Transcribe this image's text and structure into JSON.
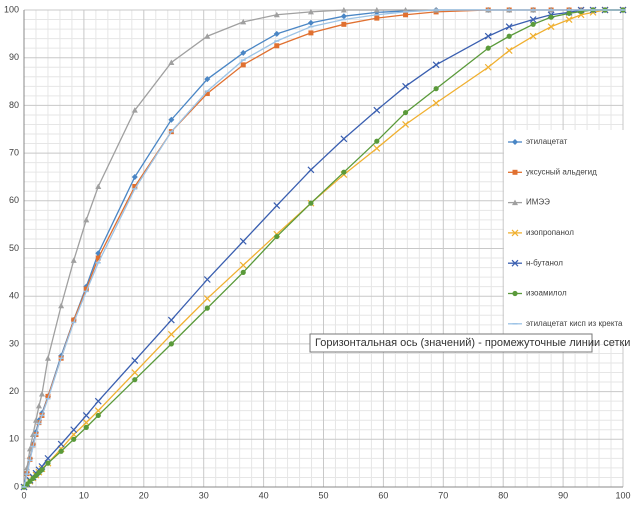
{
  "chart_data": {
    "type": "line",
    "x": [
      0,
      0.5,
      1,
      1.5,
      2,
      2.5,
      3,
      4,
      6.2,
      8.3,
      10.4,
      12.4,
      18.5,
      24.6,
      30.6,
      36.6,
      42.2,
      47.9,
      53.4,
      58.9,
      63.7,
      68.8,
      77.5,
      81,
      85,
      88,
      91,
      93,
      95,
      97,
      100
    ],
    "series": [
      {
        "name": "этилацетат",
        "color": "#4a86c5",
        "marker": "diamond",
        "values": [
          0,
          3,
          6,
          9,
          11.5,
          14,
          15.5,
          19,
          27.5,
          35,
          42,
          49,
          65,
          77,
          85.5,
          91,
          95,
          97.3,
          98.7,
          99.5,
          99.8,
          100,
          100,
          100,
          100,
          100,
          100,
          100,
          100,
          100,
          100
        ]
      },
      {
        "name": "уксусный альдегид",
        "color": "#e07030",
        "marker": "square",
        "values": [
          0,
          2.8,
          5.8,
          8.8,
          11,
          13.5,
          15,
          19,
          27,
          35,
          41.5,
          48,
          63,
          74.5,
          82.5,
          88.5,
          92.5,
          95.2,
          97,
          98.3,
          99,
          99.6,
          100,
          100,
          100,
          100,
          100,
          100,
          100,
          100,
          100
        ]
      },
      {
        "name": "ИМЭЭ",
        "color": "#a0a0a0",
        "marker": "triangle",
        "values": [
          0,
          4,
          8,
          11,
          14,
          17,
          19.5,
          27,
          38,
          47.5,
          56,
          63,
          79,
          89,
          94.5,
          97.5,
          99,
          99.6,
          100,
          100,
          100,
          100,
          100,
          100,
          100,
          100,
          100,
          100,
          100,
          100,
          100
        ]
      },
      {
        "name": "изопропанол",
        "color": "#f0b030",
        "marker": "x",
        "values": [
          0,
          0.6,
          1.2,
          1.9,
          2.5,
          3.1,
          3.8,
          5,
          8,
          11,
          13.5,
          16,
          24,
          32,
          39.5,
          46.5,
          53,
          59.5,
          65.5,
          71,
          76,
          80.5,
          88,
          91.5,
          94.5,
          96.5,
          98,
          99,
          99.5,
          100,
          100
        ]
      },
      {
        "name": "н-бутанол",
        "color": "#3a5fb0",
        "marker": "x",
        "values": [
          0,
          0.7,
          1.4,
          2.1,
          2.9,
          3.6,
          4.3,
          6,
          9,
          12,
          15,
          18,
          26.5,
          35,
          43.5,
          51.5,
          59,
          66.5,
          73,
          79,
          84,
          88.5,
          94.5,
          96.5,
          98,
          99,
          99.5,
          100,
          100,
          100,
          100
        ]
      },
      {
        "name": "изоамилол",
        "color": "#5a9a3a",
        "marker": "circle",
        "values": [
          0,
          0.6,
          1.2,
          1.8,
          2.4,
          3,
          3.6,
          5,
          7.5,
          10,
          12.5,
          15,
          22.5,
          30,
          37.5,
          45,
          52.5,
          59.5,
          66,
          72.5,
          78.5,
          83.5,
          92,
          94.5,
          97,
          98.5,
          99.3,
          99.7,
          100,
          100,
          100
        ]
      },
      {
        "name": "этилацетат кисп из кректа",
        "color": "#9cc3e6",
        "marker": "dash",
        "values": [
          0,
          2.7,
          5.6,
          8.5,
          11,
          13.3,
          15,
          18.5,
          27,
          34.5,
          41,
          47,
          62.5,
          74.5,
          83,
          89.5,
          93.5,
          96.5,
          98,
          99,
          99.6,
          100,
          100,
          100,
          100,
          100,
          100,
          100,
          100,
          100,
          100
        ]
      }
    ],
    "xlim": [
      0,
      100
    ],
    "xticks": [
      0,
      10,
      20,
      30,
      40,
      50,
      60,
      70,
      80,
      90,
      100
    ],
    "ylim": [
      0,
      100
    ],
    "yticks": [
      0,
      10,
      20,
      30,
      40,
      50,
      60,
      70,
      80,
      90,
      100
    ],
    "grid": true,
    "minor_grid": true,
    "legend": "right",
    "tooltip": "Горизонтальная ось (значений)  - промежуточные линии сетки"
  }
}
